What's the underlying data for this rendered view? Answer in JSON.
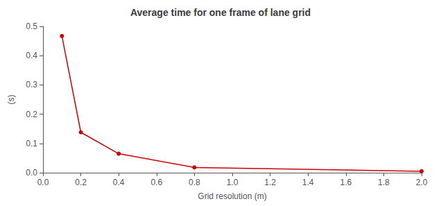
{
  "chart_data": {
    "type": "line",
    "title": "Average time for one frame of lane grid",
    "xlabel": "Grid resolution (m)",
    "ylabel": "(s)",
    "x": [
      0.1,
      0.2,
      0.4,
      0.8,
      2.0
    ],
    "values": [
      0.467,
      0.138,
      0.065,
      0.018,
      0.005
    ],
    "color": "#cc0000",
    "marker": "circle",
    "xlim": [
      0,
      2.0
    ],
    "ylim": [
      0,
      0.5
    ],
    "xticks": [
      {
        "value": 0,
        "label": "0.0"
      },
      0.2,
      0.4,
      0.6,
      0.8,
      {
        "value": 1.0,
        "label": "1.0"
      },
      1.2,
      1.4,
      1.6,
      1.8,
      {
        "value": 2.0,
        "label": "2.0"
      }
    ],
    "yticks": [
      {
        "value": 0,
        "label": "0.0"
      },
      0.1,
      0.2,
      0.3,
      0.4,
      0.5
    ],
    "grid": false
  }
}
